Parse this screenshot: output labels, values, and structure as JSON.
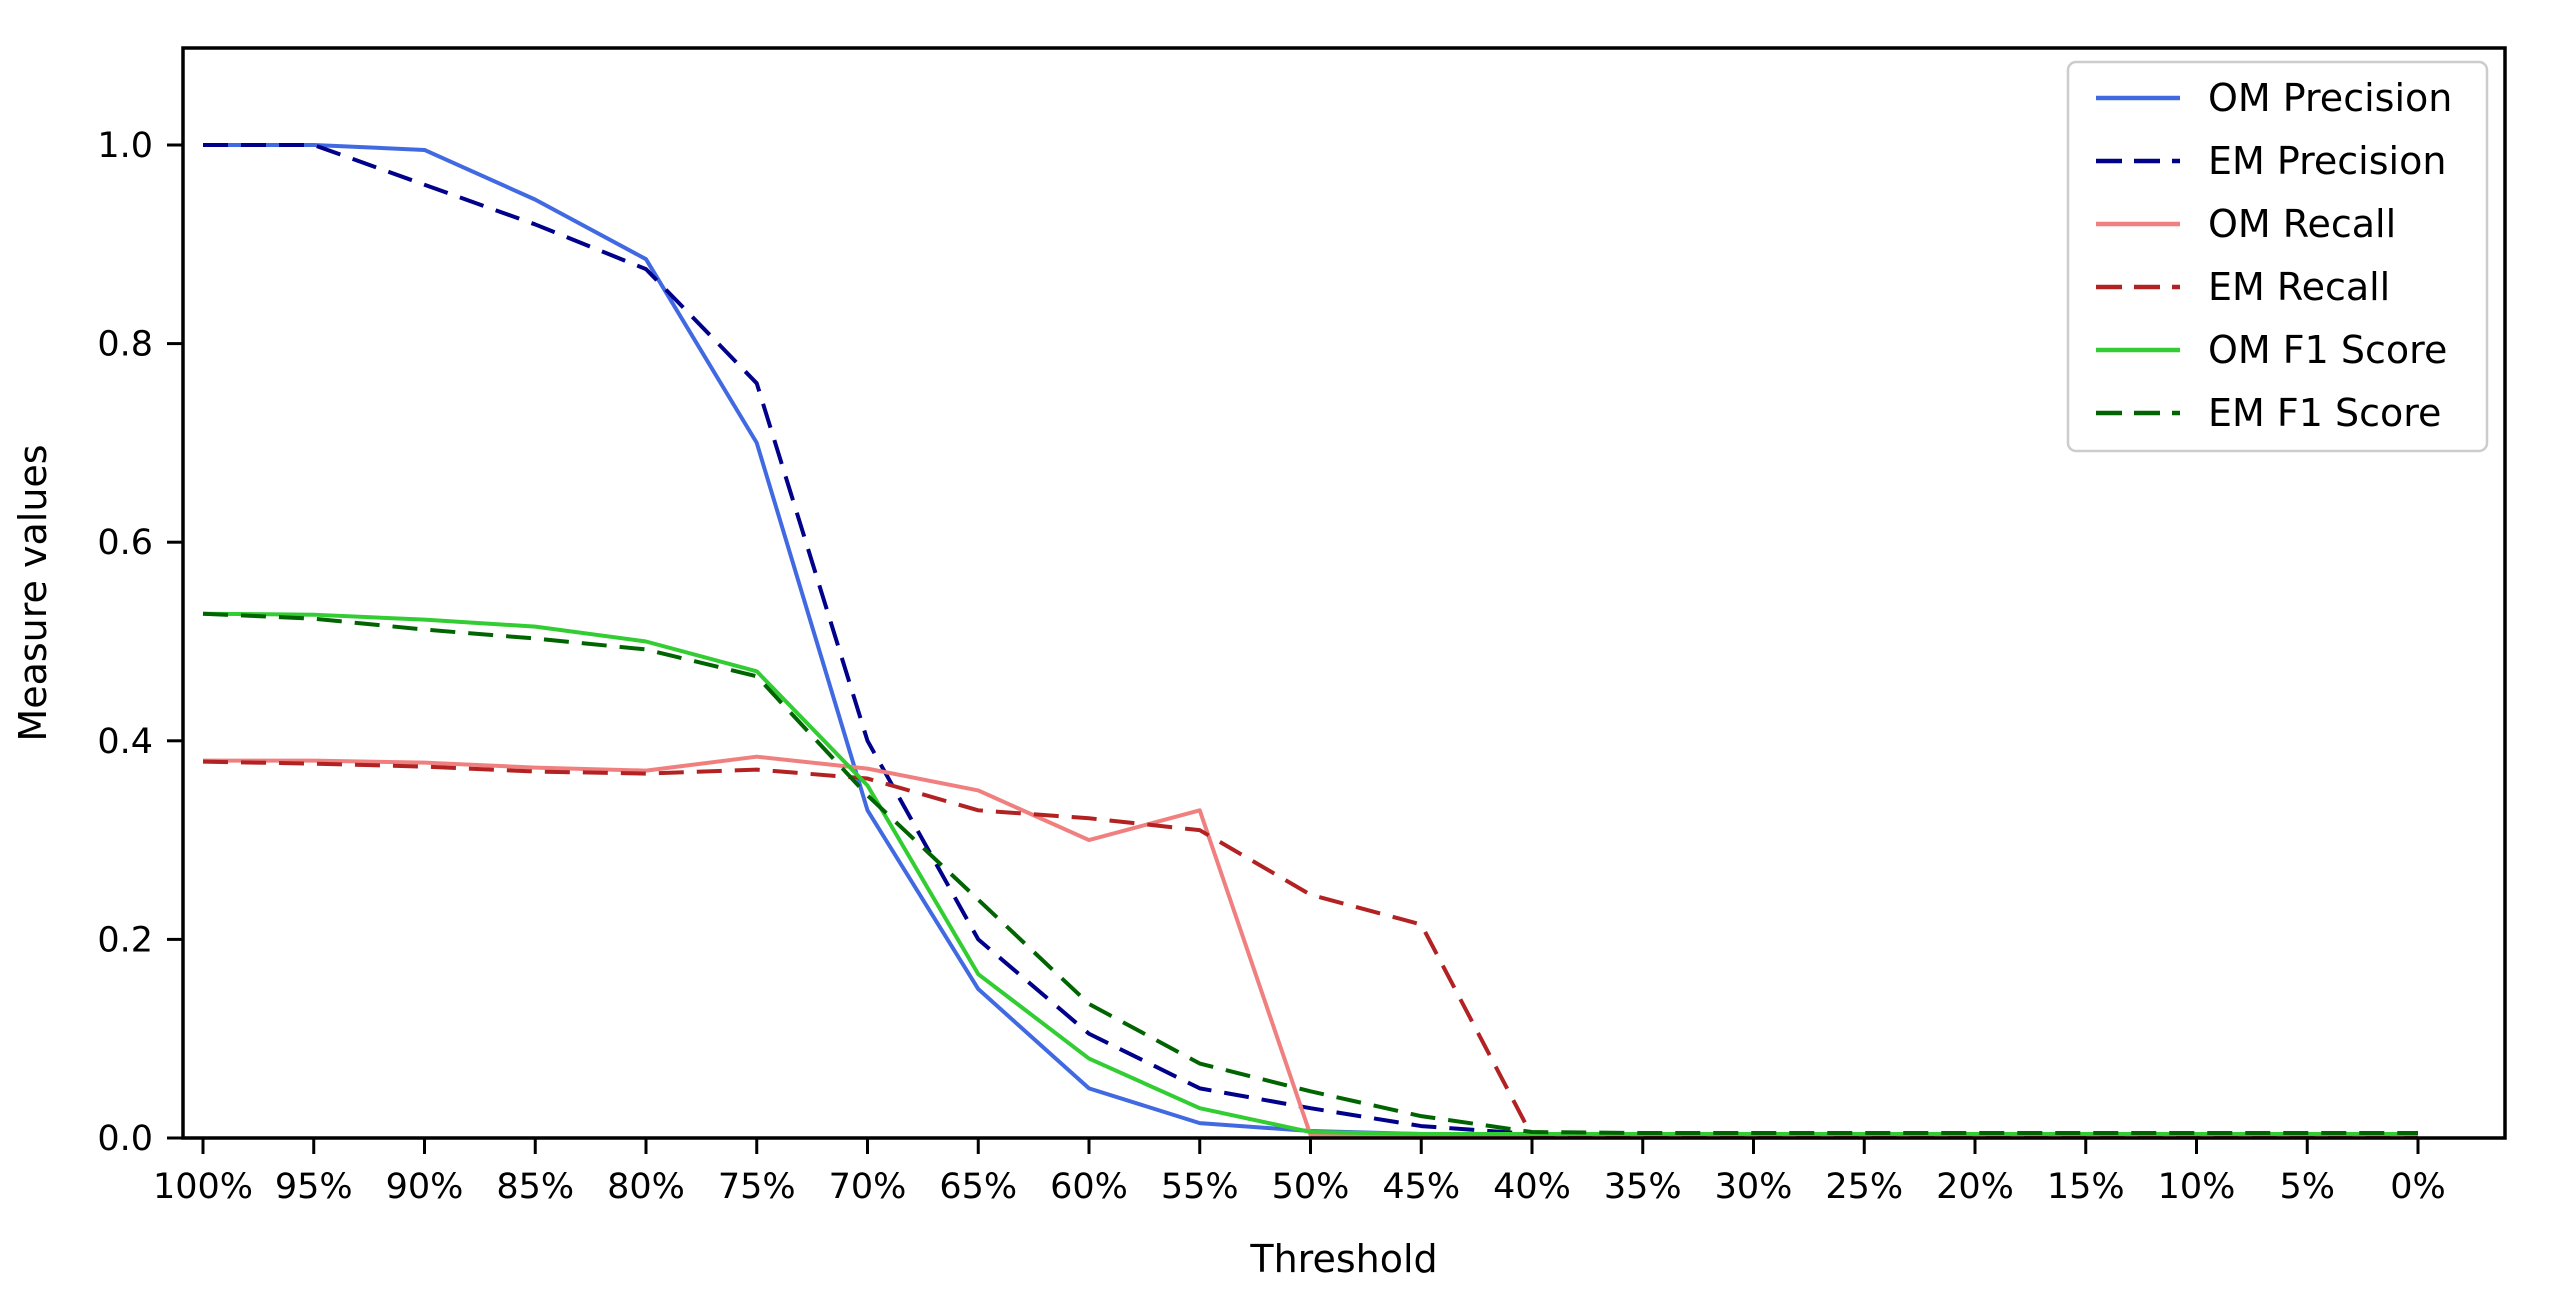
{
  "chart_data": {
    "type": "line",
    "title": "",
    "xlabel": "Threshold",
    "ylabel": "Measure values",
    "grid": false,
    "legend_position": "upper right",
    "x_percent": [
      100,
      95,
      90,
      85,
      80,
      75,
      70,
      65,
      60,
      55,
      50,
      45,
      40,
      35,
      30,
      25,
      20,
      15,
      10,
      5,
      0
    ],
    "x_tick_labels": [
      "100%",
      "95%",
      "90%",
      "85%",
      "80%",
      "75%",
      "70%",
      "65%",
      "60%",
      "55%",
      "50%",
      "45%",
      "40%",
      "35%",
      "30%",
      "25%",
      "20%",
      "15%",
      "10%",
      "5%",
      "0%"
    ],
    "y_ticks": [
      0.0,
      0.2,
      0.4,
      0.6,
      0.8,
      1.0
    ],
    "ylim": [
      0,
      1.1
    ],
    "series": [
      {
        "name": "OM Precision",
        "color": "#4169e1",
        "style": "solid",
        "values": [
          1.0,
          1.0,
          0.995,
          0.945,
          0.885,
          0.7,
          0.33,
          0.15,
          0.05,
          0.015,
          0.007,
          0.004,
          0.003,
          0.003,
          0.003,
          0.003,
          0.003,
          0.003,
          0.003,
          0.003,
          0.003
        ]
      },
      {
        "name": "EM Precision",
        "color": "#00008b",
        "style": "dashed",
        "values": [
          1.0,
          1.0,
          0.96,
          0.92,
          0.875,
          0.76,
          0.4,
          0.2,
          0.105,
          0.05,
          0.03,
          0.012,
          0.004,
          0.003,
          0.003,
          0.003,
          0.003,
          0.003,
          0.003,
          0.003,
          0.003
        ]
      },
      {
        "name": "OM Recall",
        "color": "#f08080",
        "style": "solid",
        "values": [
          0.38,
          0.38,
          0.378,
          0.373,
          0.37,
          0.384,
          0.372,
          0.35,
          0.3,
          0.33,
          0.003,
          0.002,
          0.002,
          0.002,
          0.002,
          0.002,
          0.002,
          0.002,
          0.002,
          0.002,
          0.002
        ]
      },
      {
        "name": "EM Recall",
        "color": "#b22222",
        "style": "dashed",
        "values": [
          0.379,
          0.377,
          0.374,
          0.369,
          0.367,
          0.371,
          0.362,
          0.33,
          0.322,
          0.31,
          0.245,
          0.215,
          0.002,
          0.002,
          0.002,
          0.002,
          0.002,
          0.002,
          0.002,
          0.002,
          0.002
        ]
      },
      {
        "name": "OM F1 Score",
        "color": "#32cd32",
        "style": "solid",
        "values": [
          0.528,
          0.527,
          0.522,
          0.515,
          0.5,
          0.47,
          0.355,
          0.165,
          0.08,
          0.03,
          0.006,
          0.004,
          0.004,
          0.004,
          0.004,
          0.004,
          0.004,
          0.004,
          0.004,
          0.004,
          0.004
        ]
      },
      {
        "name": "EM F1 Score",
        "color": "#006400",
        "style": "dashed",
        "values": [
          0.528,
          0.523,
          0.512,
          0.503,
          0.492,
          0.465,
          0.345,
          0.24,
          0.135,
          0.075,
          0.047,
          0.022,
          0.006,
          0.005,
          0.005,
          0.005,
          0.005,
          0.005,
          0.005,
          0.005,
          0.005
        ]
      }
    ],
    "colors": {
      "background": "#ffffff",
      "spine": "#000000",
      "text": "#000000",
      "legend_border": "#cccccc"
    }
  }
}
